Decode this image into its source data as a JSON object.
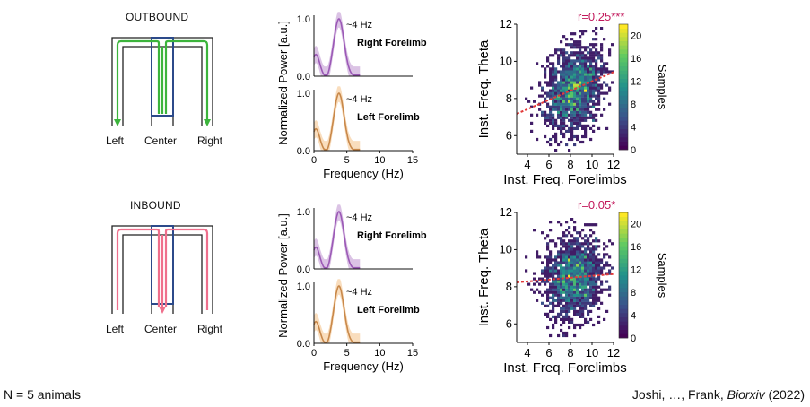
{
  "rows": [
    {
      "maze": {
        "title": "OUTBOUND",
        "left": "Left",
        "center": "Center",
        "right": "Right",
        "path_color": "#3cb43c"
      },
      "spectra": [
        {
          "peak": "~4 Hz",
          "limb": "Right Forelimb",
          "color": "#9b59b6",
          "fill": "#d7bde2",
          "yticks": [
            "0.0",
            "1.0"
          ]
        },
        {
          "peak": "~4 Hz",
          "limb": "Left Forelimb",
          "color": "#c8884a",
          "fill": "#f8d9b6",
          "yticks": [
            "0.0",
            "1.0"
          ]
        }
      ],
      "spectra_xticks": [
        "0",
        "5",
        "10",
        "15"
      ],
      "spectra_ylabel": "Normalized Power [a.u.]",
      "spectra_xlabel": "Frequency (Hz)",
      "heatmap": {
        "r_label": "r=0.25***",
        "ylabel": "Inst. Freq. Theta",
        "xlabel": "Inst. Freq. Forelimbs",
        "xticks": [
          "4",
          "6",
          "8",
          "10",
          "12"
        ],
        "yticks": [
          "6",
          "8",
          "10",
          "12"
        ],
        "cb_ticks": [
          "0",
          "4",
          "8",
          "12",
          "16",
          "20"
        ],
        "cb_label": "Samples"
      }
    },
    {
      "maze": {
        "title": "INBOUND",
        "left": "Left",
        "center": "Center",
        "right": "Right",
        "path_color": "#ef6f8c"
      },
      "spectra": [
        {
          "peak": "~4 Hz",
          "limb": "Right Forelimb",
          "color": "#9b59b6",
          "fill": "#d7bde2",
          "yticks": [
            "0.0",
            "1.0"
          ]
        },
        {
          "peak": "~4 Hz",
          "limb": "Left Forelimb",
          "color": "#c8884a",
          "fill": "#f8d9b6",
          "yticks": [
            "0.0",
            "1.0"
          ]
        }
      ],
      "spectra_xticks": [
        "0",
        "5",
        "10",
        "15"
      ],
      "spectra_ylabel": "Normalized Power [a.u.]",
      "spectra_xlabel": "Frequency (Hz)",
      "heatmap": {
        "r_label": "r=0.05*",
        "ylabel": "Inst. Freq. Theta",
        "xlabel": "Inst. Freq. Forelimbs",
        "xticks": [
          "4",
          "6",
          "8",
          "10",
          "12"
        ],
        "yticks": [
          "6",
          "8",
          "10",
          "12"
        ],
        "cb_ticks": [
          "0",
          "4",
          "8",
          "12",
          "16",
          "20"
        ],
        "cb_label": "Samples"
      }
    }
  ],
  "footer": {
    "left": "N = 5 animals",
    "right_prefix": "Joshi, …, Frank, ",
    "right_journal": "Biorxiv",
    "right_suffix": " (2022)"
  },
  "colors": {
    "r_label": "#c2185b",
    "maze_outline": "#222222",
    "center_box": "#2c4a8a"
  }
}
